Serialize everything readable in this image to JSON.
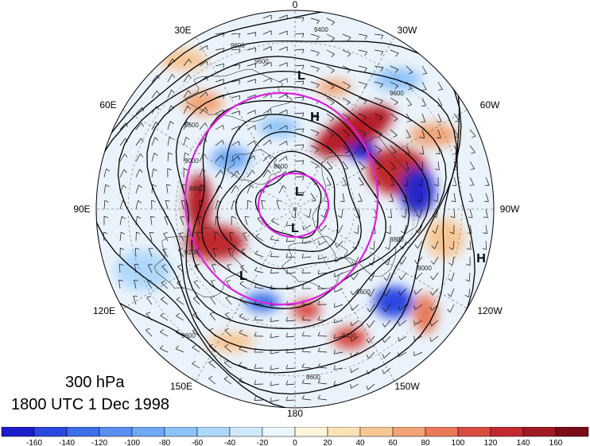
{
  "title": {
    "level": "300 hPa",
    "valid_time": "1800 UTC 1 Dec 1998"
  },
  "longitude_labels": [
    "0",
    "30W",
    "60W",
    "90W",
    "120W",
    "150W",
    "180",
    "150E",
    "120E",
    "90E",
    "60E",
    "30E"
  ],
  "contour_labels": [
    "9400",
    "9600",
    "9000",
    "8800",
    "8600",
    "9200",
    "8400"
  ],
  "pressure_centers": [
    {
      "label": "L",
      "name": "low-near-pole"
    },
    {
      "label": "L",
      "name": "low-greenland"
    },
    {
      "label": "L",
      "name": "low-arctic-north"
    },
    {
      "label": "L",
      "name": "low-siberia"
    },
    {
      "label": "H",
      "name": "high-norway"
    },
    {
      "label": "H",
      "name": "high-pacific-edge"
    }
  ],
  "colorbar": {
    "tick_labels": [
      "-160",
      "-140",
      "-120",
      "-100",
      "-80",
      "-60",
      "-40",
      "-20",
      "0",
      "20",
      "40",
      "60",
      "80",
      "100",
      "120",
      "140",
      "160"
    ],
    "colors": [
      "#1c1cc8",
      "#2c47e0",
      "#3d6ee8",
      "#5a8ff0",
      "#6fa8f5",
      "#8ec3f8",
      "#aed8fb",
      "#cfe9fc",
      "#eaf7fd",
      "#fdf6dc",
      "#fbe3b8",
      "#f7c695",
      "#f2a477",
      "#e87a5a",
      "#d94c42",
      "#c12a2f",
      "#a01a25",
      "#7a0d18"
    ]
  },
  "colors": {
    "magenta_circles": "#e020e0",
    "contours": "#000000",
    "grid": "#555555"
  }
}
